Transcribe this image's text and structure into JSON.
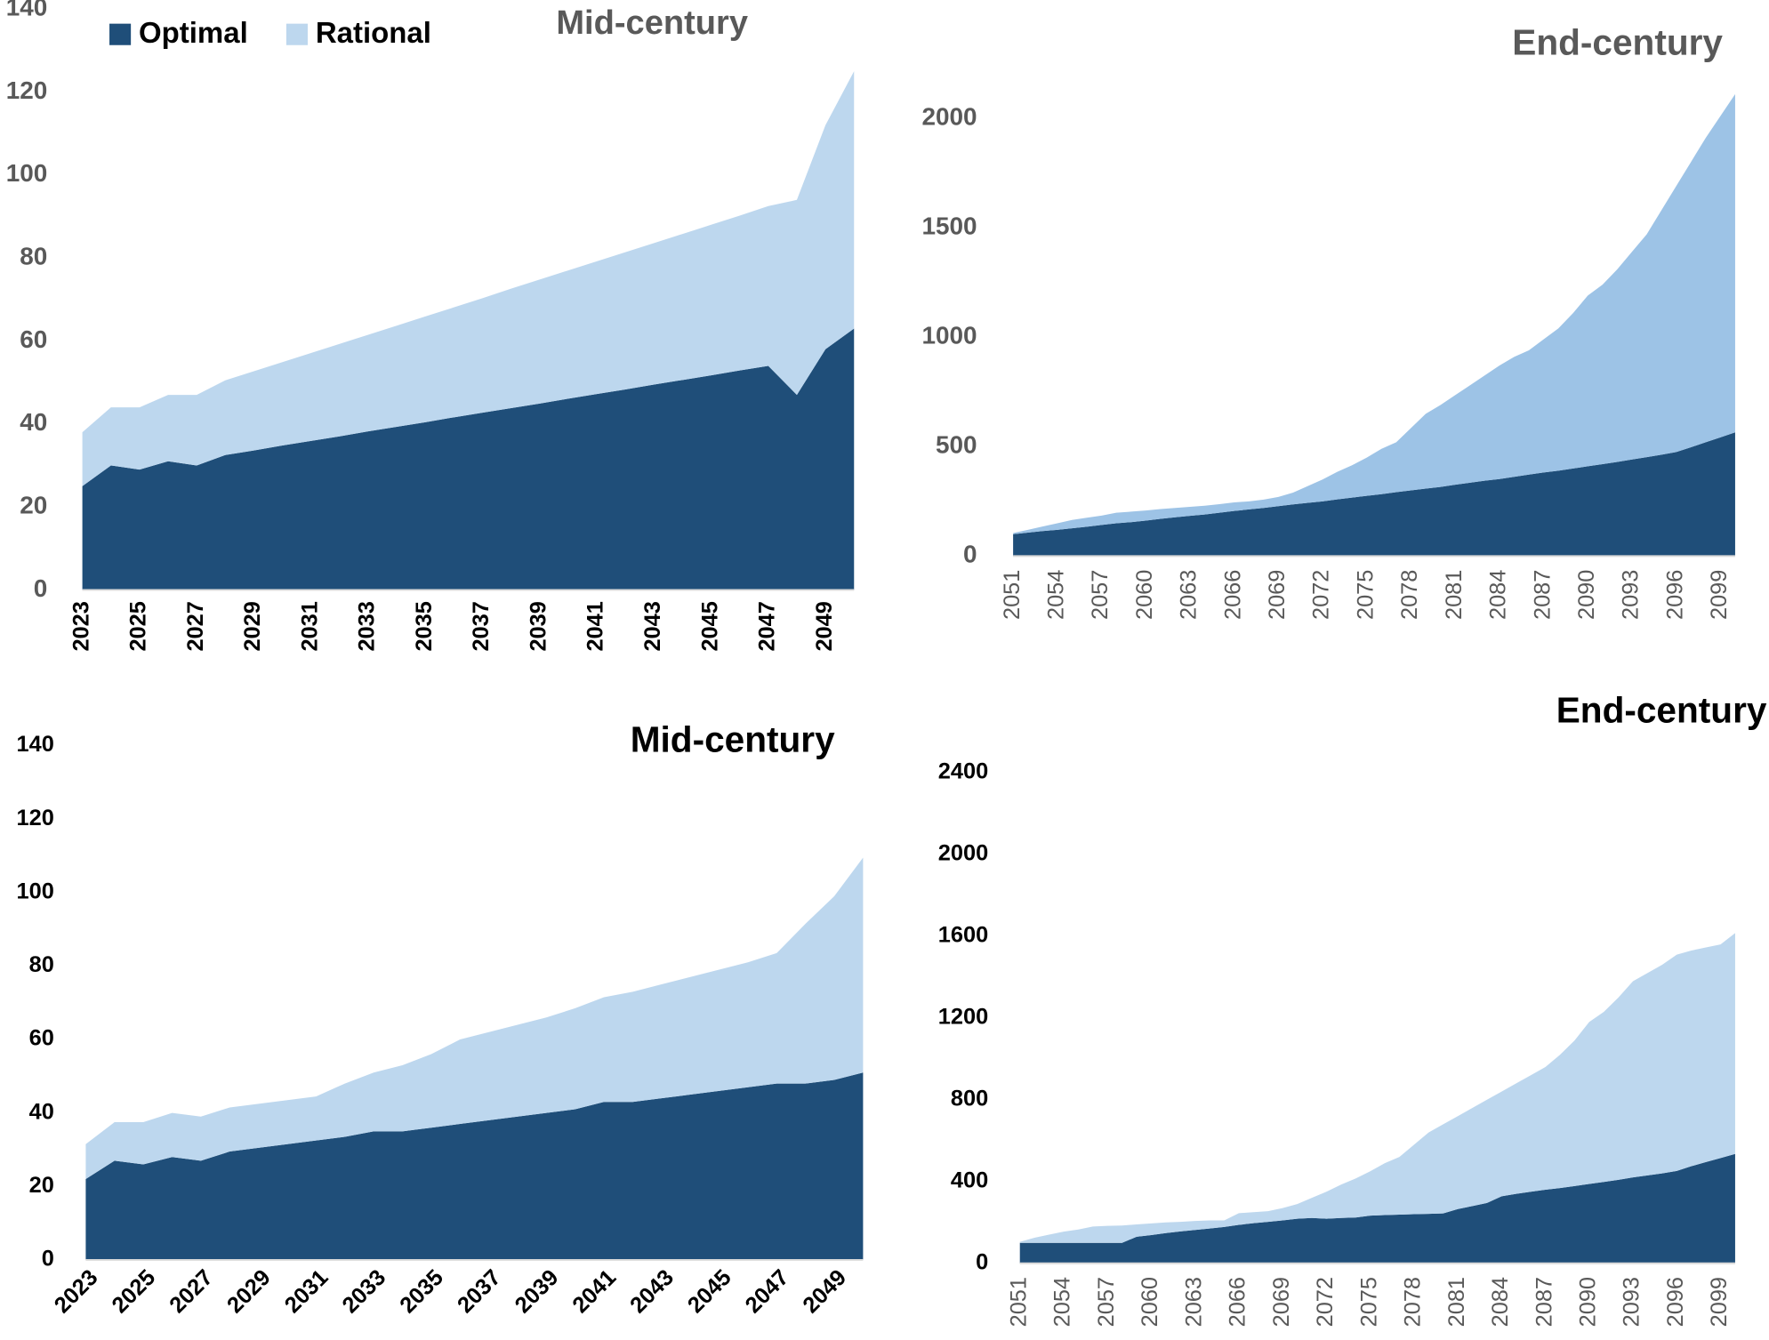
{
  "chart_data": [
    {
      "type": "area",
      "title": "Mid-century",
      "legend": "upper left",
      "categories": [
        "2023",
        null,
        "2025",
        null,
        "2027",
        null,
        "2029",
        null,
        "2031",
        null,
        "2033",
        null,
        "2035",
        null,
        "2037",
        null,
        "2039",
        null,
        "2041",
        null,
        "2043",
        null,
        "2045",
        null,
        "2047",
        null,
        "2049",
        null
      ],
      "series": [
        {
          "name": "Optimal",
          "color": "#1f4e79",
          "values": [
            25,
            30,
            29,
            31,
            30,
            32.5,
            33.6,
            34.8,
            35.9,
            37,
            38.2,
            39.3,
            40.4,
            41.6,
            42.7,
            43.8,
            44.9,
            46.1,
            47.2,
            48.3,
            49.5,
            50.6,
            51.7,
            52.9,
            54,
            47,
            58,
            63
          ]
        },
        {
          "name": "Rational",
          "color": "#bdd7ee",
          "values": [
            13,
            14,
            15,
            16,
            17,
            18,
            19.1,
            20.1,
            21.2,
            22.3,
            23.3,
            24.4,
            25.5,
            26.5,
            27.6,
            28.8,
            29.9,
            30.9,
            32,
            33.1,
            34.1,
            35.2,
            36.3,
            37.3,
            38.5,
            47,
            54,
            62
          ]
        }
      ],
      "ylim": [
        0,
        140
      ],
      "yticks": [
        0,
        20,
        40,
        60,
        80,
        100,
        120,
        140
      ]
    },
    {
      "type": "area",
      "title": "End-century",
      "categories": [
        "2051",
        null,
        null,
        "2054",
        null,
        null,
        "2057",
        null,
        null,
        "2060",
        null,
        null,
        "2063",
        null,
        null,
        "2066",
        null,
        null,
        "2069",
        null,
        null,
        "2072",
        null,
        null,
        "2075",
        null,
        null,
        "2078",
        null,
        null,
        "2081",
        null,
        null,
        "2084",
        null,
        null,
        "2087",
        null,
        null,
        "2090",
        null,
        null,
        "2093",
        null,
        null,
        "2096",
        null,
        null,
        "2099",
        null
      ],
      "series": [
        {
          "color": "#1f4e79",
          "values": [
            100,
            107,
            114,
            120,
            127,
            134,
            142,
            150,
            155,
            162,
            170,
            177,
            184,
            190,
            198,
            206,
            213,
            220,
            228,
            236,
            243,
            250,
            259,
            267,
            275,
            283,
            292,
            300,
            308,
            316,
            326,
            335,
            344,
            352,
            362,
            372,
            382,
            390,
            400,
            410,
            420,
            430,
            441,
            452,
            463,
            475,
            497,
            520,
            542,
            565
          ]
        },
        {
          "color": "#9dc3e6",
          "values": [
            5,
            13,
            21,
            30,
            38,
            41,
            43,
            48,
            48,
            46,
            45,
            43,
            41,
            40,
            39,
            39,
            37,
            38,
            42,
            54,
            77,
            100,
            126,
            148,
            175,
            207,
            228,
            285,
            342,
            374,
            409,
            445,
            481,
            518,
            548,
            568,
            608,
            650,
            710,
            780,
            820,
            880,
            949,
            1018,
            1117,
            1215,
            1303,
            1390,
            1468,
            1545
          ]
        }
      ],
      "ylim": [
        0,
        2200
      ],
      "yticks": [
        0,
        500,
        1000,
        1500,
        2000
      ]
    },
    {
      "type": "area",
      "title": "Mid-century",
      "categories": [
        "2023",
        null,
        "2025",
        null,
        "2027",
        null,
        "2029",
        null,
        "2031",
        null,
        "2033",
        null,
        "2035",
        null,
        "2037",
        null,
        "2039",
        null,
        "2041",
        null,
        "2043",
        null,
        "2045",
        null,
        "2047",
        null,
        "2049",
        null
      ],
      "series": [
        {
          "color": "#1f4e79",
          "values": [
            22,
            27,
            26,
            28,
            27,
            29.5,
            30.5,
            31.5,
            32.5,
            33.5,
            35,
            35,
            36,
            37,
            38,
            39,
            40,
            41,
            43,
            43,
            44,
            45,
            46,
            47,
            48,
            48,
            49,
            51
          ]
        },
        {
          "color": "#bdd7ee",
          "values": [
            9.5,
            10.5,
            11.5,
            12,
            12,
            12,
            12,
            12,
            12,
            14.5,
            16,
            18,
            20,
            23,
            24,
            25,
            26,
            27.5,
            28.5,
            30,
            31,
            32,
            33,
            34,
            35.5,
            43.5,
            50,
            58.5
          ]
        }
      ],
      "ylim": [
        0,
        140
      ],
      "yticks": [
        0,
        20,
        40,
        60,
        80,
        100,
        120,
        140
      ]
    },
    {
      "type": "area",
      "title": "End-century",
      "categories": [
        "2051",
        null,
        null,
        "2054",
        null,
        null,
        "2057",
        null,
        null,
        "2060",
        null,
        null,
        "2063",
        null,
        null,
        "2066",
        null,
        null,
        "2069",
        null,
        null,
        "2072",
        null,
        null,
        "2075",
        null,
        null,
        "2078",
        null,
        null,
        "2081",
        null,
        null,
        "2084",
        null,
        null,
        "2087",
        null,
        null,
        "2090",
        null,
        null,
        "2093",
        null,
        null,
        "2096",
        null,
        null,
        "2099",
        null
      ],
      "series": [
        {
          "color": "#1f4e79",
          "values": [
            100,
            100,
            100,
            100,
            100,
            100,
            100,
            100,
            130,
            138,
            148,
            156,
            163,
            170,
            178,
            188,
            196,
            203,
            210,
            218,
            222,
            218,
            222,
            224,
            233,
            236,
            238,
            240,
            242,
            244,
            265,
            280,
            295,
            328,
            340,
            350,
            360,
            368,
            378,
            388,
            398,
            408,
            420,
            430,
            440,
            452,
            475,
            495,
            515,
            535
          ]
        },
        {
          "color": "#bdd7ee",
          "values": [
            5,
            25,
            40,
            55,
            65,
            80,
            83,
            85,
            60,
            57,
            52,
            47,
            44,
            40,
            32,
            57,
            54,
            52,
            60,
            72,
            98,
            132,
            163,
            191,
            217,
            254,
            282,
            340,
            398,
            436,
            455,
            480,
            505,
            512,
            540,
            570,
            600,
            652,
            712,
            792,
            832,
            892,
            960,
            990,
            1020,
            1058,
            1055,
            1050,
            1045,
            1080
          ]
        }
      ],
      "ylim": [
        0,
        2400
      ],
      "yticks": [
        0,
        400,
        800,
        1200,
        1600,
        2000,
        2400
      ]
    }
  ]
}
